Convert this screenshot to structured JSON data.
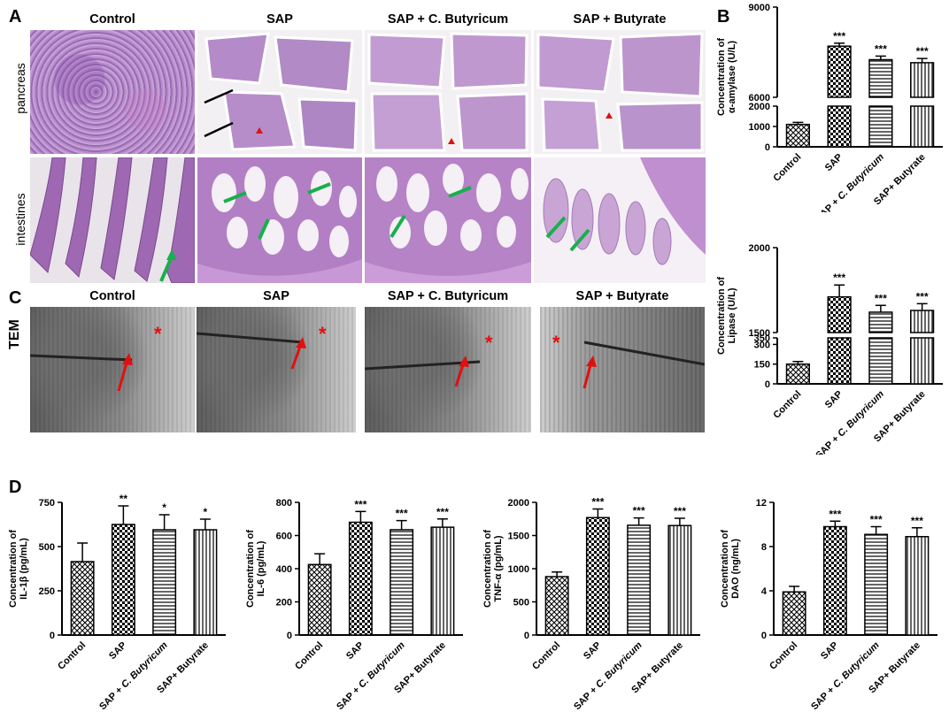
{
  "panel_labels": {
    "A": "A",
    "B": "B",
    "C": "C",
    "D": "D"
  },
  "groups": [
    "Control",
    "SAP",
    "SAP + C. Butyricum",
    "SAP + Butyrate"
  ],
  "row_labels": {
    "pancreas": "pancreas",
    "intestines": "intestines",
    "tem": "TEM"
  },
  "chart_data": [
    {
      "id": "amylase",
      "type": "bar",
      "panel": "B",
      "categories": [
        "Control",
        "SAP",
        "SAP + C. Butyricum",
        "SAP+ Butyrate"
      ],
      "values": [
        1100,
        7700,
        7250,
        7150
      ],
      "errors": [
        100,
        100,
        120,
        140
      ],
      "significance": [
        "",
        "***",
        "***",
        "***"
      ],
      "ylabel": "Concentration of α-amylase (U/L)",
      "broken_axis": true,
      "lower_ticks": [
        0,
        1000,
        2000
      ],
      "upper_ticks": [
        6000,
        9000
      ],
      "ylim_lower": [
        0,
        2000
      ],
      "ylim_upper": [
        6000,
        9000
      ]
    },
    {
      "id": "lipase",
      "type": "bar",
      "panel": "B",
      "categories": [
        "Control",
        "SAP",
        "SAP + C. Butyricum",
        "SAP+ Butyrate"
      ],
      "values": [
        150,
        1710,
        1620,
        1630
      ],
      "errors": [
        20,
        70,
        40,
        40
      ],
      "significance": [
        "",
        "***",
        "***",
        "***"
      ],
      "ylabel": "Concentration of Lipase (U/L)",
      "broken_axis": true,
      "lower_ticks": [
        0,
        150,
        300,
        350
      ],
      "upper_ticks": [
        1500,
        2000
      ],
      "ylim_lower": [
        0,
        350
      ],
      "ylim_upper": [
        1500,
        2000
      ]
    },
    {
      "id": "il1b",
      "type": "bar",
      "panel": "D",
      "categories": [
        "Control",
        "SAP",
        "SAP + C. Butyricum",
        "SAP+ Butyrate"
      ],
      "values": [
        415,
        625,
        595,
        595
      ],
      "errors": [
        105,
        105,
        85,
        60
      ],
      "significance": [
        "",
        "**",
        "*",
        "*"
      ],
      "ylabel": "Concentration of IL-1β (pg/mL)",
      "ticks": [
        0,
        250,
        500,
        750
      ],
      "ylim": [
        0,
        750
      ]
    },
    {
      "id": "il6",
      "type": "bar",
      "panel": "D",
      "categories": [
        "Control",
        "SAP",
        "SAP + C. Butyricum",
        "SAP+ Butyrate"
      ],
      "values": [
        425,
        680,
        635,
        650
      ],
      "errors": [
        65,
        65,
        55,
        50
      ],
      "significance": [
        "",
        "***",
        "***",
        "***"
      ],
      "ylabel": "Concentration of IL-6 (pg/mL)",
      "ticks": [
        0,
        200,
        400,
        600,
        800
      ],
      "ylim": [
        0,
        800
      ]
    },
    {
      "id": "tnfa",
      "type": "bar",
      "panel": "D",
      "categories": [
        "Control",
        "SAP",
        "SAP + C. Butyricum",
        "SAP+ Butyrate"
      ],
      "values": [
        880,
        1770,
        1655,
        1650
      ],
      "errors": [
        70,
        130,
        110,
        110
      ],
      "significance": [
        "",
        "***",
        "***",
        "***"
      ],
      "ylabel": "Concentration of TNF-α (pg/mL)",
      "ticks": [
        0,
        500,
        1000,
        1500,
        2000
      ],
      "ylim": [
        0,
        2000
      ]
    },
    {
      "id": "dao",
      "type": "bar",
      "panel": "D",
      "categories": [
        "Control",
        "SAP",
        "SAP + C. Butyricum",
        "SAP+ Butyrate"
      ],
      "values": [
        3.9,
        9.8,
        9.1,
        8.9
      ],
      "errors": [
        0.5,
        0.5,
        0.7,
        0.8
      ],
      "significance": [
        "",
        "***",
        "***",
        "***"
      ],
      "ylabel": "Concentration of DAO (ng/mL)",
      "ticks": [
        0,
        4,
        8,
        12
      ],
      "ylim": [
        0,
        12
      ]
    }
  ]
}
